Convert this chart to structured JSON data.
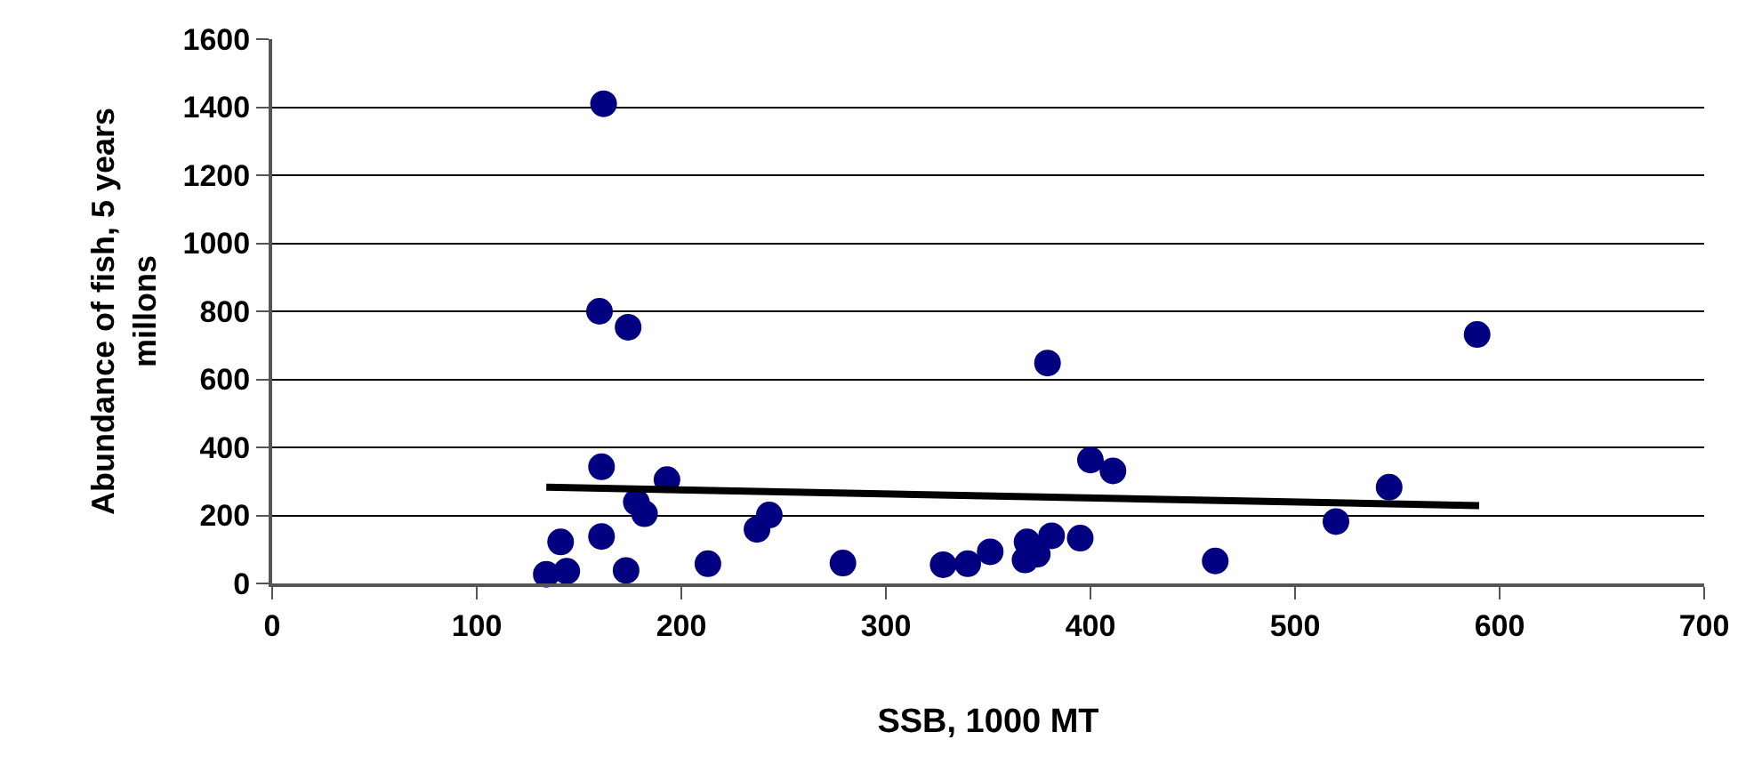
{
  "chart_data": {
    "type": "scatter",
    "xlabel": "SSB, 1000 MT",
    "ylabel": "Abundance of fish, 5 years millons",
    "xlim": [
      0,
      700
    ],
    "xticks": [
      0,
      100,
      200,
      300,
      400,
      500,
      600,
      700
    ],
    "ylim": [
      0,
      1600
    ],
    "yticks": [
      0,
      200,
      400,
      600,
      800,
      1000,
      1200,
      1400,
      1600
    ],
    "grid": "y",
    "marker": "circle",
    "series": [
      {
        "color": "#000080",
        "x": [
          160,
          174,
          161,
          193,
          178,
          182,
          243,
          237,
          141,
          161,
          134,
          144,
          173,
          213,
          162,
          279,
          328,
          340,
          351,
          368,
          369,
          374,
          381,
          379,
          395,
          400,
          411,
          461,
          520,
          546,
          589
        ],
        "values": [
          800,
          753,
          343,
          305,
          239,
          205,
          201,
          159,
          122,
          138,
          27,
          36,
          38,
          58,
          1410,
          60,
          55,
          58,
          93,
          69,
          122,
          86,
          140,
          648,
          133,
          363,
          331,
          66,
          182,
          283,
          732
        ]
      },
      {
        "type": "line",
        "color": "#000000",
        "x": [
          134,
          590
        ],
        "values": [
          283,
          229
        ],
        "marker": "none",
        "line_style": "solid"
      }
    ]
  }
}
